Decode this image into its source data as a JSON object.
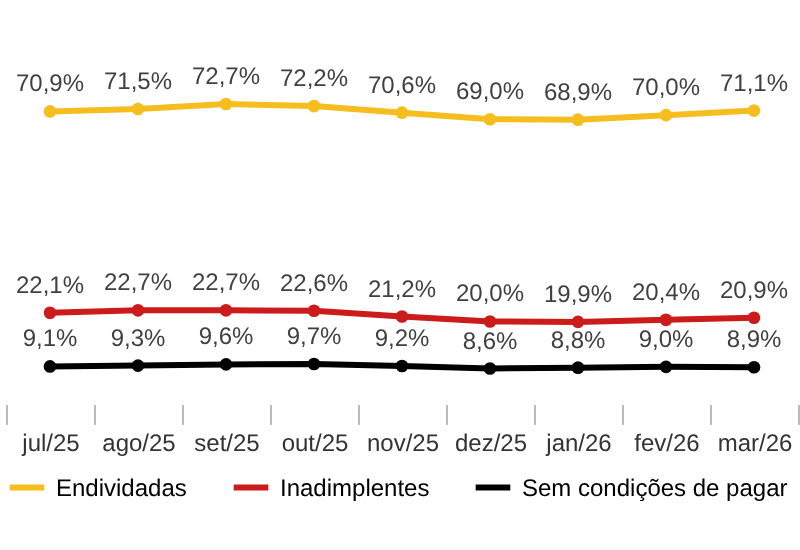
{
  "chart_data": {
    "type": "line",
    "categories": [
      "jul/25",
      "ago/25",
      "set/25",
      "out/25",
      "nov/25",
      "dez/25",
      "jan/26",
      "fev/26",
      "mar/26"
    ],
    "series": [
      {
        "name": "Endividadas",
        "color": "#f5be1e",
        "values": [
          70.9,
          71.5,
          72.7,
          72.2,
          70.6,
          69.0,
          68.9,
          70.0,
          71.1
        ],
        "value_labels": [
          "70,9%",
          "71,5%",
          "72,7%",
          "72,2%",
          "70,6%",
          "69,0%",
          "68,9%",
          "70,0%",
          "71,1%"
        ]
      },
      {
        "name": "Inadimplentes",
        "color": "#cc1b1b",
        "values": [
          22.1,
          22.7,
          22.7,
          22.6,
          21.2,
          20.0,
          19.9,
          20.4,
          20.9
        ],
        "value_labels": [
          "22,1%",
          "22,7%",
          "22,7%",
          "22,6%",
          "21,2%",
          "20,0%",
          "19,9%",
          "20,4%",
          "20,9%"
        ]
      },
      {
        "name": "Sem condições de pagar",
        "color": "#000000",
        "values": [
          9.1,
          9.3,
          9.6,
          9.7,
          9.2,
          8.6,
          8.8,
          9.0,
          8.9
        ],
        "value_labels": [
          "9,1%",
          "9,3%",
          "9,6%",
          "9,7%",
          "9,2%",
          "8,6%",
          "8,8%",
          "9,0%",
          "8,9%"
        ]
      }
    ],
    "legend": "bottom",
    "marker": "circle",
    "line_style": "solid",
    "grid": false
  }
}
